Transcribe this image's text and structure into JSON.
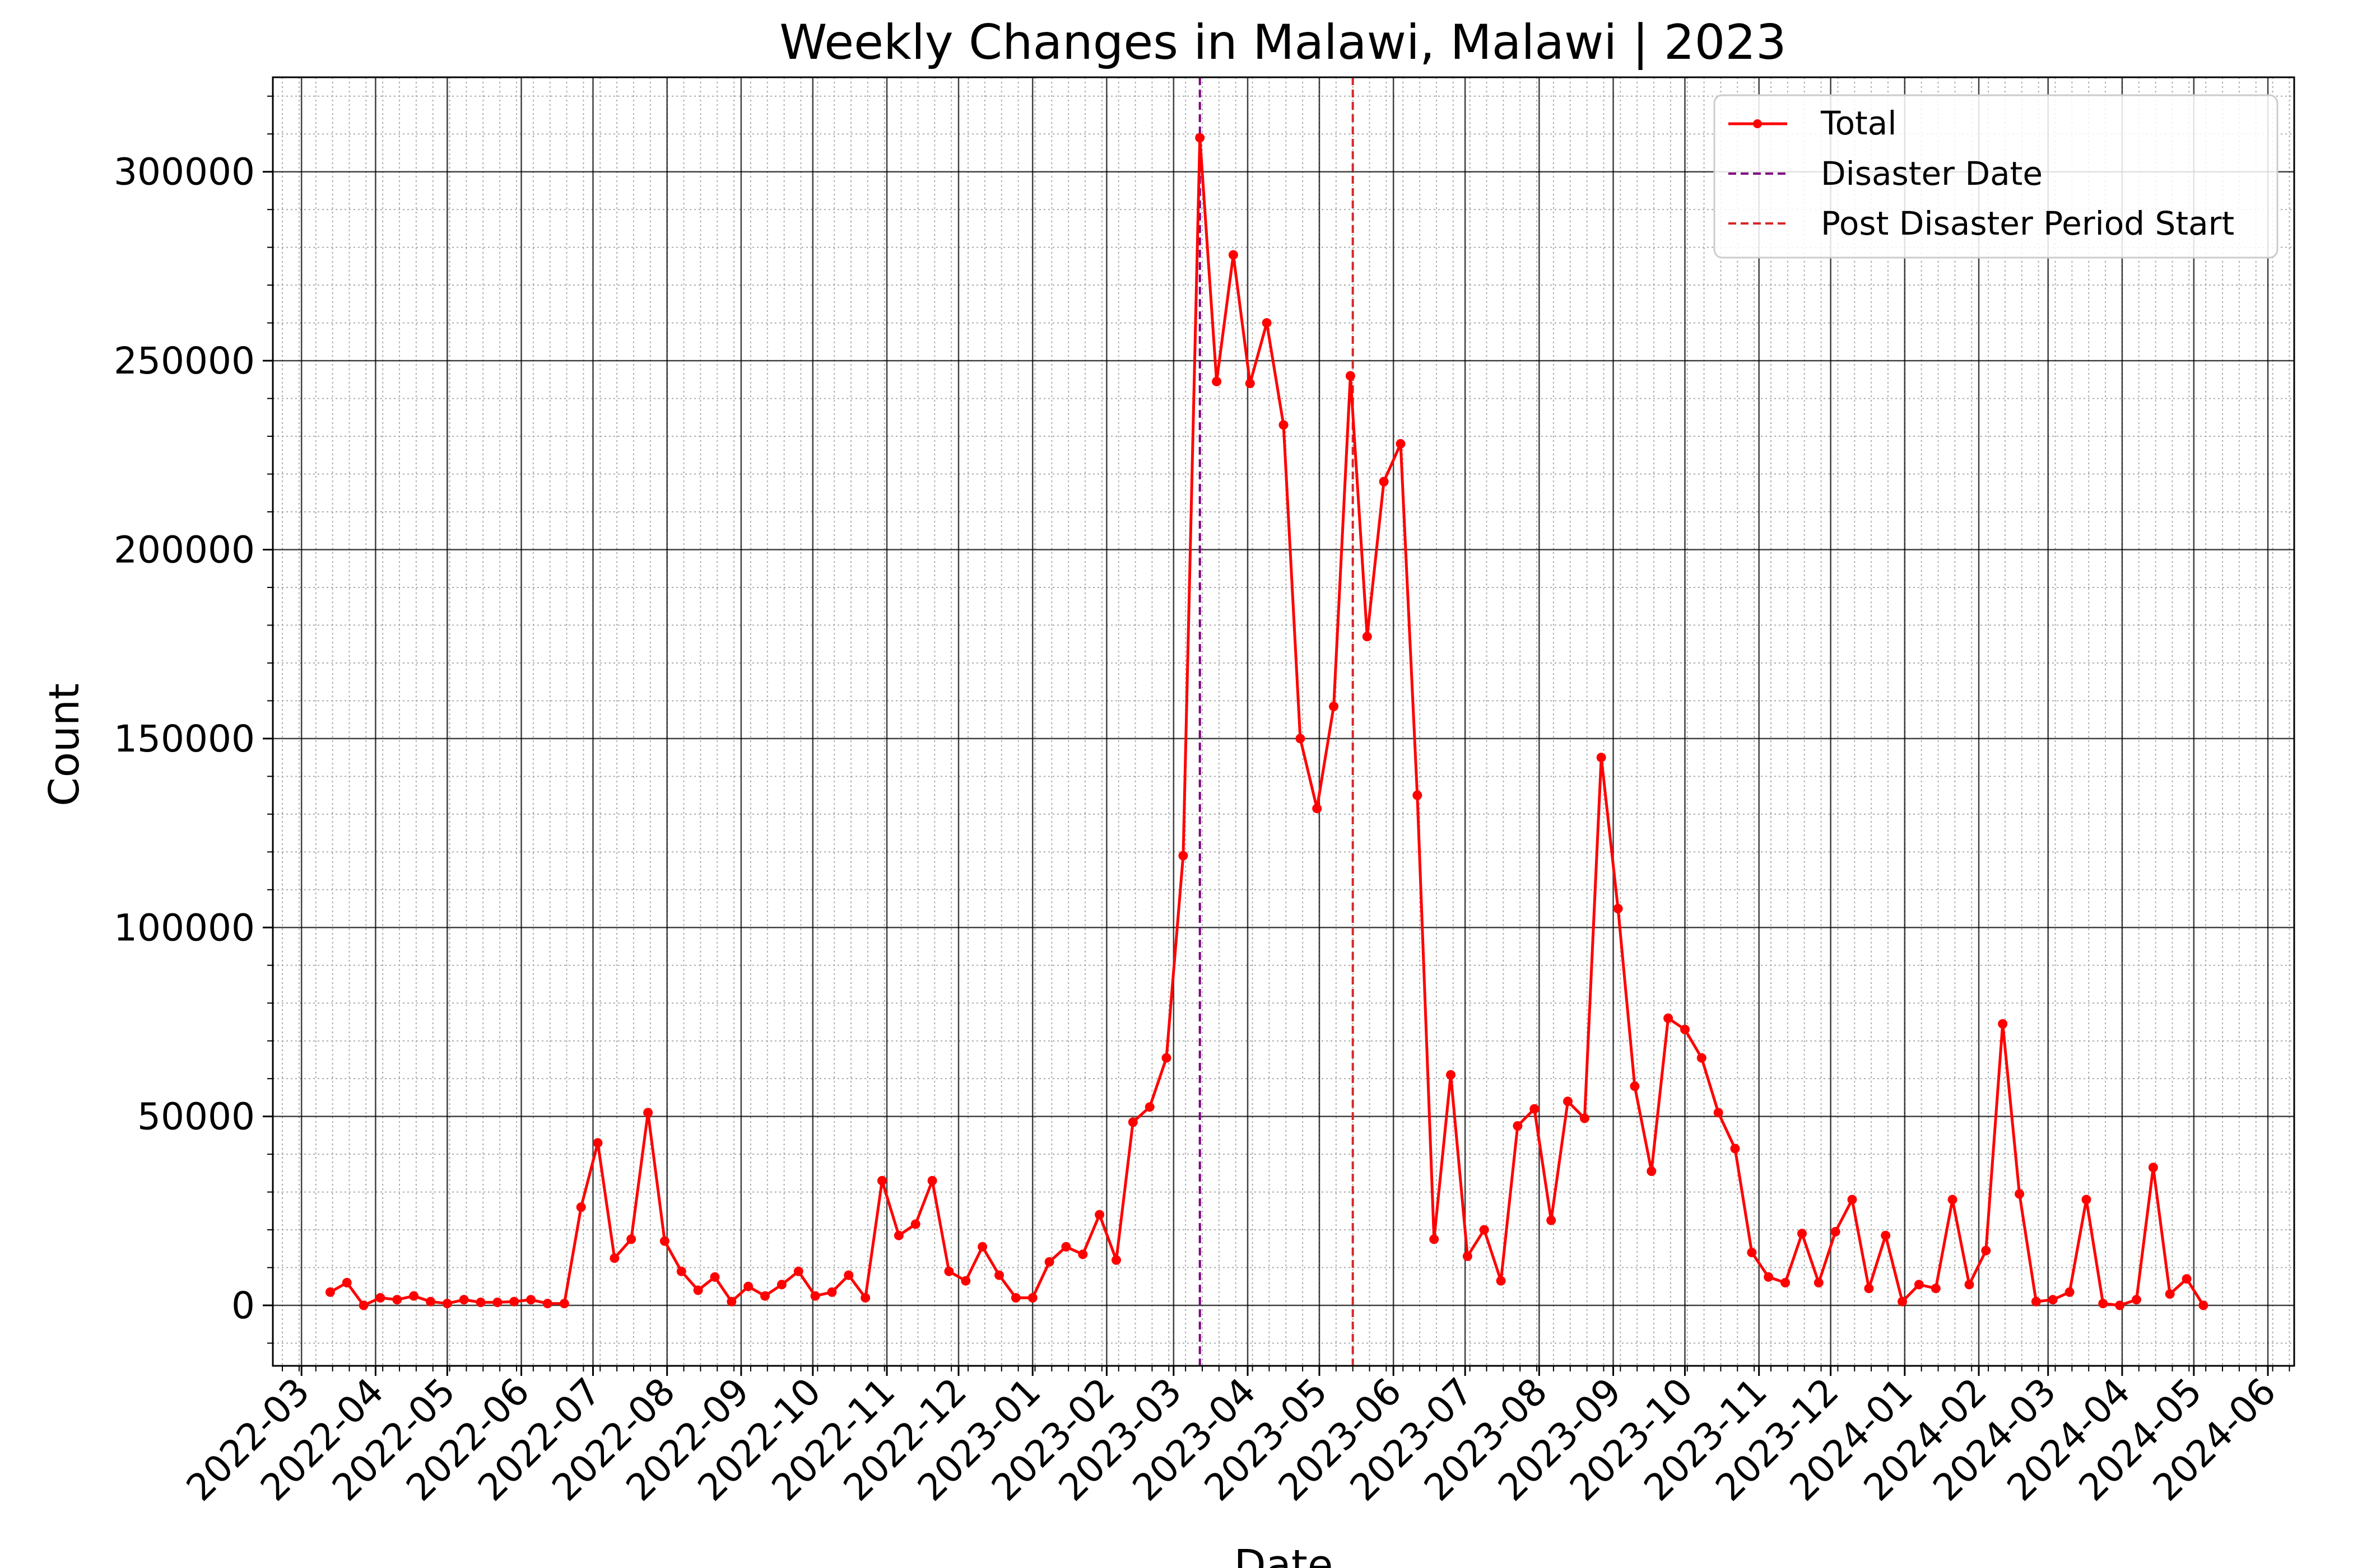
{
  "chart_data": {
    "type": "line",
    "title": "Weekly Changes in Malawi, Malawi | 2023",
    "xlabel": "Date",
    "ylabel": "Count",
    "ylim": [
      -16000,
      325000
    ],
    "xlim": [
      "2022-02-17",
      "2024-06-12"
    ],
    "yticks": [
      0,
      50000,
      100000,
      150000,
      200000,
      250000,
      300000
    ],
    "xticks": [
      "2022-03",
      "2022-04",
      "2022-05",
      "2022-06",
      "2022-07",
      "2022-08",
      "2022-09",
      "2022-10",
      "2022-11",
      "2022-12",
      "2023-01",
      "2023-02",
      "2023-03",
      "2023-04",
      "2023-05",
      "2023-06",
      "2023-07",
      "2023-08",
      "2023-09",
      "2023-10",
      "2023-11",
      "2023-12",
      "2024-01",
      "2024-02",
      "2024-03",
      "2024-04",
      "2024-05",
      "2024-06"
    ],
    "grid": true,
    "legend_position": "top-right",
    "series": [
      {
        "name": "Total",
        "color": "#ff0000",
        "marker": "circle",
        "start_date": "2022-03-13",
        "interval_days": 7,
        "values": [
          3500,
          6000,
          0,
          2000,
          1500,
          2500,
          1000,
          500,
          1500,
          800,
          800,
          1000,
          1500,
          500,
          500,
          26000,
          43000,
          12500,
          17500,
          51000,
          17000,
          9000,
          4000,
          7500,
          1000,
          5000,
          2500,
          5500,
          9000,
          2500,
          3500,
          8000,
          2000,
          33000,
          18500,
          21500,
          33000,
          9000,
          6500,
          15500,
          8000,
          2000,
          2000,
          11500,
          15500,
          13500,
          24000,
          12000,
          48500,
          52500,
          65500,
          119000,
          309000,
          244500,
          278000,
          244000,
          260000,
          233000,
          150000,
          131500,
          158500,
          246000,
          177000,
          218000,
          228000,
          135000,
          17500,
          61000,
          13000,
          20000,
          6500,
          47500,
          52000,
          22500,
          54000,
          49500,
          145000,
          105000,
          58000,
          35500,
          76000,
          73000,
          65500,
          51000,
          41500,
          14000,
          7500,
          6000,
          19000,
          6000,
          19500,
          28000,
          4500,
          18500,
          1000,
          5500,
          4500,
          28000,
          5500,
          14500,
          74500,
          29500,
          1000,
          1500,
          3500,
          28000,
          500,
          0,
          1500,
          36500,
          3000,
          7000,
          0
        ]
      }
    ],
    "vlines": [
      {
        "name": "Disaster Date",
        "date": "2023-03-12",
        "color": "#800080",
        "style": "dashed"
      },
      {
        "name": "Post Disaster Period Start",
        "date": "2023-05-15",
        "color": "#d62728",
        "style": "dashed"
      }
    ]
  }
}
